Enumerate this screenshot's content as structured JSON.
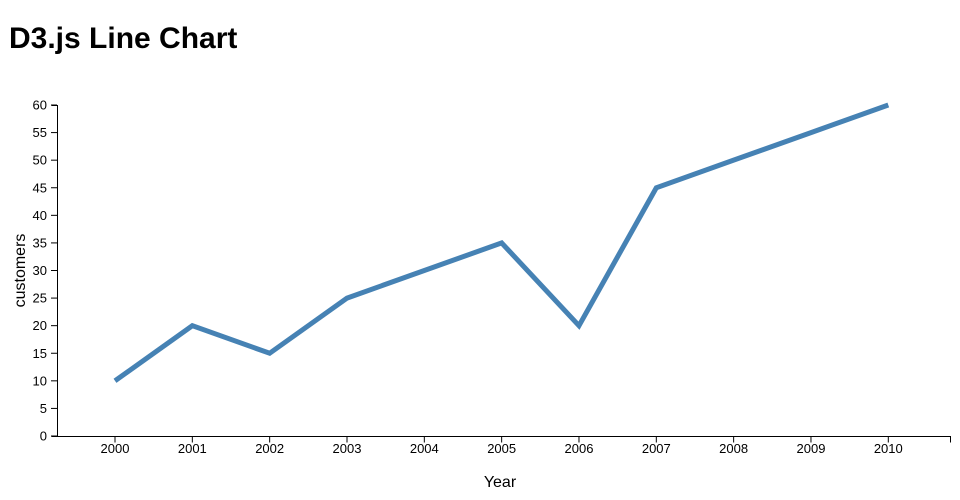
{
  "page": {
    "title": "D3.js Line Chart"
  },
  "chart_data": {
    "type": "line",
    "title": "D3.js Line Chart",
    "xlabel": "Year",
    "ylabel": "customers",
    "x": [
      2000,
      2001,
      2002,
      2003,
      2004,
      2005,
      2006,
      2007,
      2008,
      2009,
      2010
    ],
    "values": [
      10,
      20,
      15,
      25,
      30,
      35,
      20,
      45,
      50,
      55,
      60
    ],
    "x_ticks": [
      2000,
      2001,
      2002,
      2003,
      2004,
      2005,
      2006,
      2007,
      2008,
      2009,
      2010
    ],
    "y_ticks": [
      0,
      5,
      10,
      15,
      20,
      25,
      30,
      35,
      40,
      45,
      50,
      55,
      60
    ],
    "ylim": [
      0,
      60
    ],
    "grid": false,
    "legend": "none",
    "line_color": "#4682B4",
    "line_width": 5,
    "axis_color": "#000000",
    "text_color": "#000000"
  }
}
